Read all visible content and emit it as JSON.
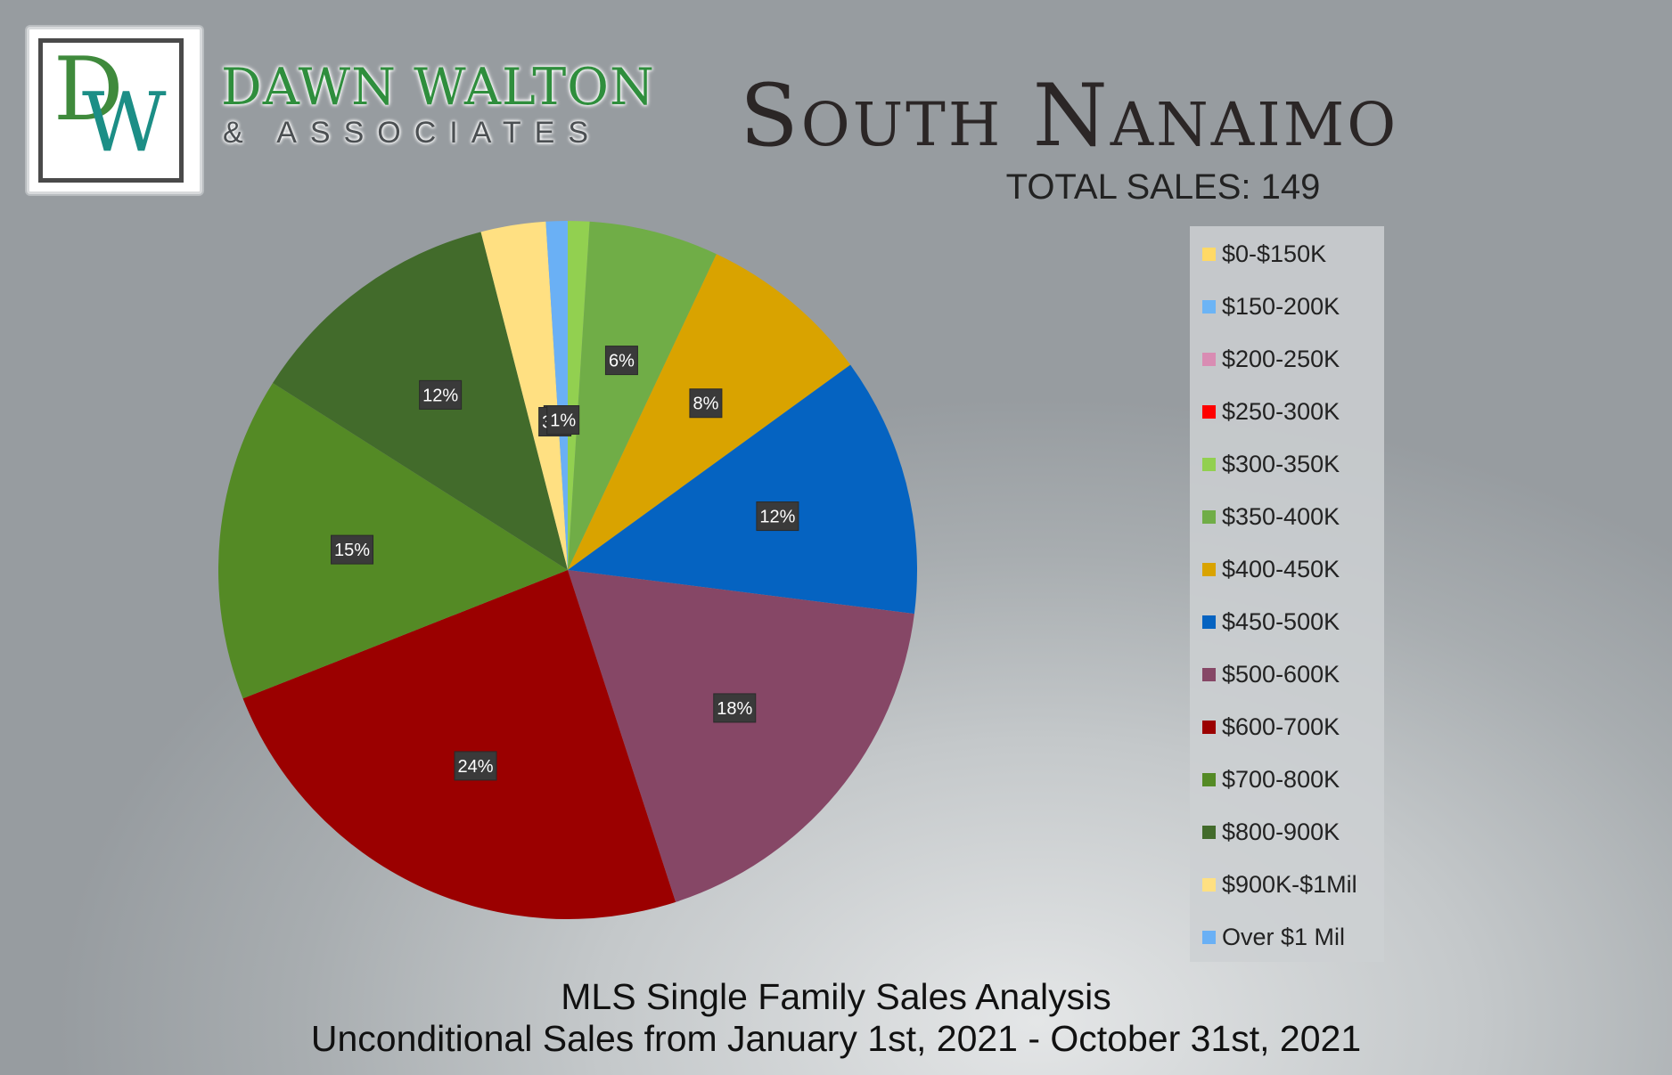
{
  "brand": {
    "logo_letters": "DW",
    "name": "DAWN WALTON",
    "sub": "& ASSOCIATES",
    "colors": {
      "green": "#2f8e3d",
      "teal": "#1c8e86"
    }
  },
  "title": "South Nanaimo",
  "total_sales": "TOTAL SALES: 149",
  "footer": {
    "line1": "MLS Single Family Sales Analysis",
    "line2": "Unconditional Sales from January 1st, 2021 - October 31st, 2021"
  },
  "chart_data": {
    "type": "pie",
    "legend_position": "right",
    "categories": [
      "$0-$150K",
      "$150-200K",
      "$200-250K",
      "$250-300K",
      "$300-350K",
      "$350-400K",
      "$400-450K",
      "$450-500K",
      "$500-600K",
      "$600-700K",
      "$700-800K",
      "$800-900K",
      "$900K-$1Mil",
      "Over $1 Mil"
    ],
    "values": [
      0,
      0,
      0,
      0,
      1,
      6,
      8,
      12,
      18,
      24,
      15,
      12,
      3,
      1
    ],
    "data_labels": [
      "",
      "",
      "",
      "",
      "1%",
      "6%",
      "8%",
      "12%",
      "18%",
      "24%",
      "15%",
      "12%",
      "3%",
      "1%"
    ],
    "colors": [
      "#ffd966",
      "#6cb4f5",
      "#d98cb3",
      "#ff0000",
      "#92d050",
      "#70ad47",
      "#d9a300",
      "#0563c1",
      "#864766",
      "#9b0000",
      "#548a25",
      "#426b2b",
      "#ffe082",
      "#6ab0f5"
    ]
  }
}
